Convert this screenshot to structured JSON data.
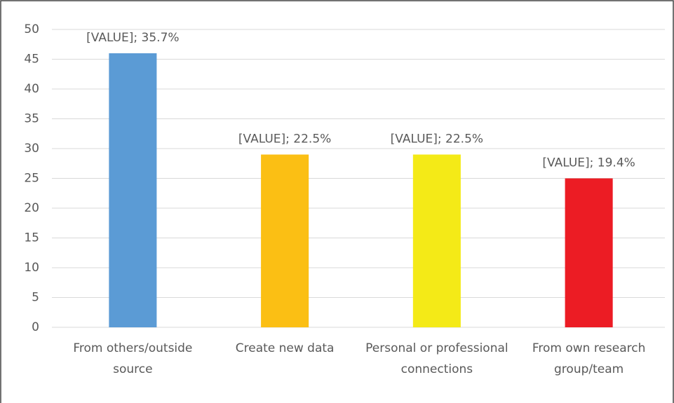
{
  "chart_data": {
    "type": "bar",
    "categories": [
      "From others/outside source",
      "Create new data",
      "Personal or professional connections",
      "From own research group/team"
    ],
    "values": [
      46,
      29,
      29,
      25
    ],
    "value_labels": [
      "[VALUE]; 35.7%",
      "[VALUE]; 22.5%",
      "[VALUE]; 22.5%",
      "[VALUE]; 19.4%"
    ],
    "colors": [
      "#5b9bd5",
      "#fbbf14",
      "#f4ea17",
      "#ec1c24"
    ],
    "ylim": [
      0,
      50
    ],
    "yticks": [
      0,
      5,
      10,
      15,
      20,
      25,
      30,
      35,
      40,
      45,
      50
    ],
    "grid": true
  }
}
